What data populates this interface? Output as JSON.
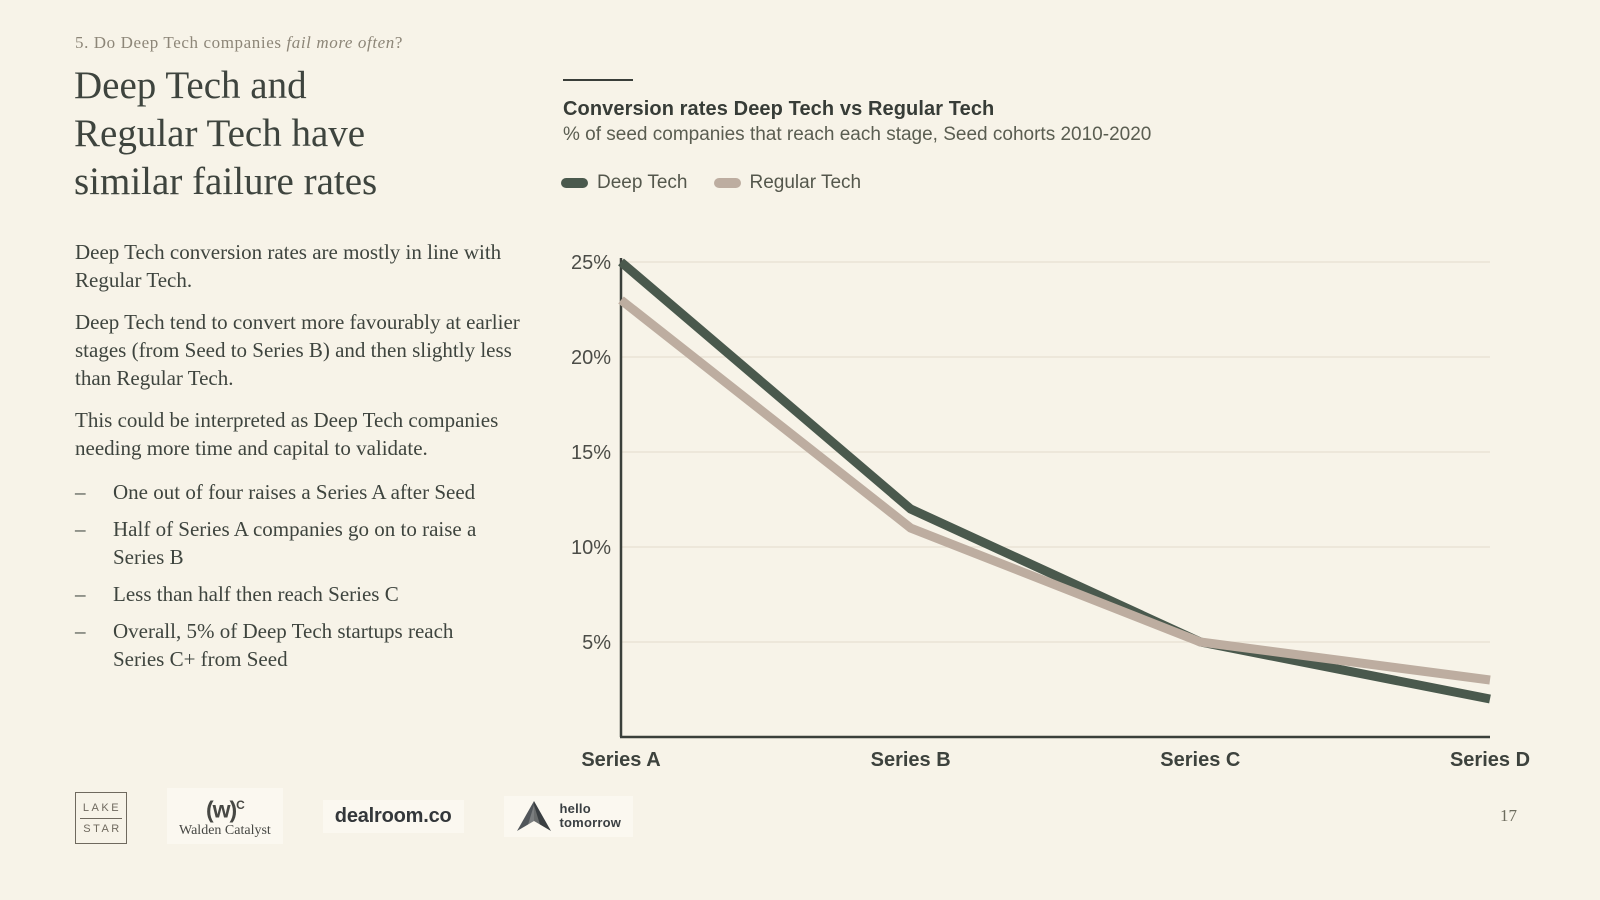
{
  "kicker": {
    "prefix": "5. Do Deep Tech companies ",
    "emphasis": "fail more often",
    "suffix": "?"
  },
  "title_lines": [
    "Deep Tech and",
    "Regular Tech have",
    "similar failure rates"
  ],
  "paragraphs": [
    "Deep Tech conversion rates are mostly in line with Regular Tech.",
    "Deep Tech tend to convert more favourably at earlier stages (from Seed to Series B) and then slightly less than Regular Tech.",
    "This could be interpreted as Deep Tech companies needing more time and capital to validate."
  ],
  "bullets": {
    "marker": "–",
    "items": [
      "One out of four raises a Series A after Seed",
      "Half of Series A companies go on to raise a Series B",
      "Less than half then reach Series C",
      "Overall, 5% of Deep Tech startups reach Series C+ from Seed"
    ]
  },
  "chart_data": {
    "type": "line",
    "title": "Conversion rates Deep Tech vs Regular Tech",
    "subtitle": "% of seed companies that reach each stage, Seed cohorts 2010-2020",
    "categories": [
      "Series A",
      "Series B",
      "Series C",
      "Series D"
    ],
    "series": [
      {
        "name": "Deep Tech",
        "color": "#4a594d",
        "values": [
          25,
          12,
          5,
          2
        ]
      },
      {
        "name": "Regular Tech",
        "color": "#bdada0",
        "values": [
          23,
          11,
          5,
          3
        ]
      }
    ],
    "yticks": [
      5,
      10,
      15,
      20,
      25
    ],
    "ytick_suffix": "%",
    "ylim": [
      0,
      25
    ],
    "grid": "horizontal",
    "legend_position": "top-left",
    "colors": {
      "grid": "#e7e0d1",
      "axis": "#3a3f3a",
      "tick_label": "#4b4c47",
      "x_label": "#3d423d"
    }
  },
  "footer": {
    "page_number": "17",
    "logos": {
      "lakestar": {
        "line1": "LAKE",
        "line2": "STAR"
      },
      "walden": {
        "mark": "(w)",
        "sup": "C",
        "label": "Walden Catalyst"
      },
      "dealroom": {
        "label": "dealroom.co"
      },
      "hello_tomorrow": {
        "line1": "hello",
        "line2": "tomorrow"
      }
    }
  }
}
